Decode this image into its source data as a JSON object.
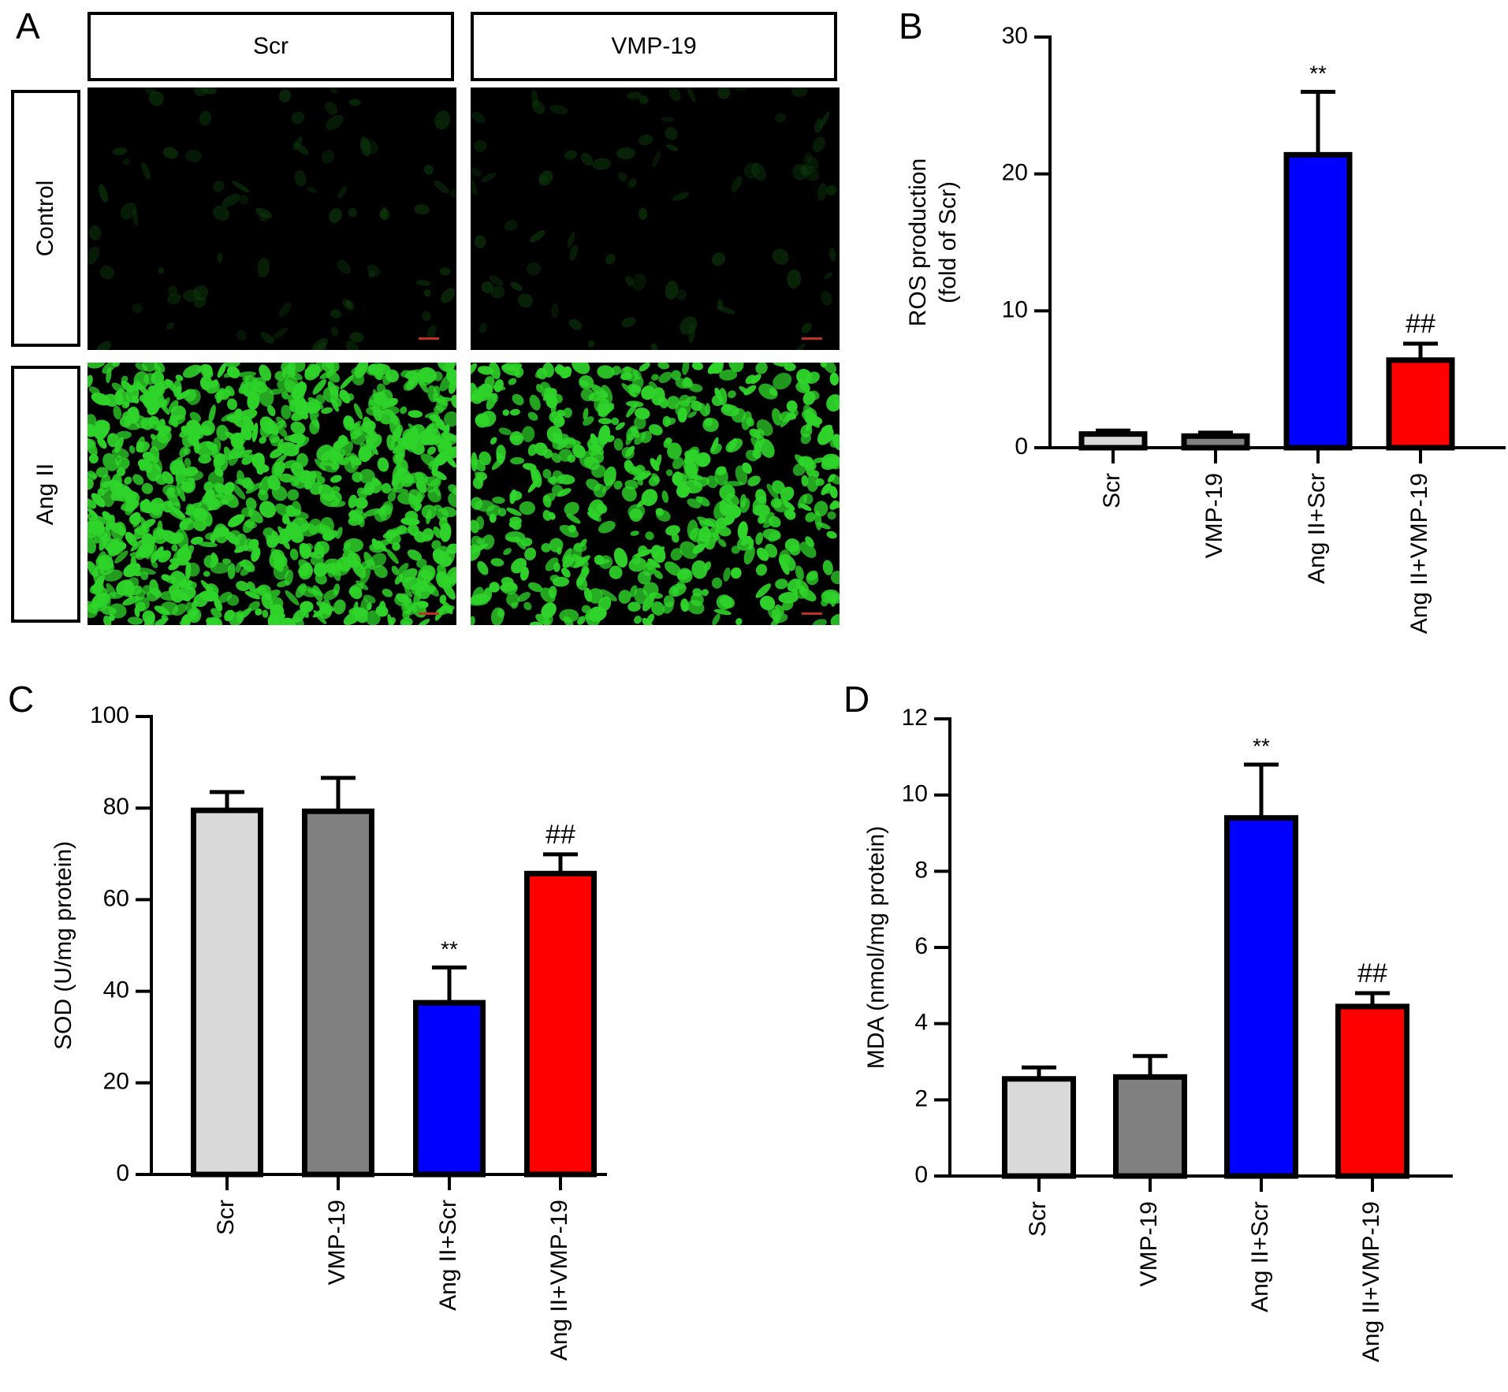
{
  "panel_a": {
    "letter": "A",
    "columns": [
      "Scr",
      "VMP-19"
    ],
    "rows": [
      "Control",
      "Ang II"
    ],
    "image_note_colors": {
      "background": "#000000",
      "cells": "#2fd42a"
    },
    "fluorescence_level": [
      [
        0.02,
        0.02
      ],
      [
        0.95,
        0.55
      ]
    ]
  },
  "chart_data": [
    {
      "panel": "B",
      "type": "bar",
      "categories": [
        "Scr",
        "VMP-19",
        "Ang II+Scr",
        "Ang II+VMP-19"
      ],
      "values": [
        1.0,
        0.85,
        21.4,
        6.4
      ],
      "errors": [
        0.25,
        0.25,
        4.6,
        1.2
      ],
      "annotations": [
        "",
        "",
        "**",
        "##"
      ],
      "ylabel_lines": [
        "ROS production",
        "(fold of Scr)"
      ],
      "yticks": [
        0,
        10,
        20,
        30
      ],
      "ylim": [
        0,
        30
      ],
      "colors": [
        "#d9d9d9",
        "#808080",
        "#0000ff",
        "#ff0000"
      ],
      "grid": false
    },
    {
      "panel": "C",
      "type": "bar",
      "categories": [
        "Scr",
        "VMP-19",
        "Ang II+Scr",
        "Ang II+VMP-19"
      ],
      "values": [
        79.5,
        79.3,
        37.5,
        65.7
      ],
      "errors": [
        4.0,
        7.3,
        7.7,
        4.2
      ],
      "annotations": [
        "",
        "",
        "**",
        "##"
      ],
      "ylabel_lines": [
        "SOD (U/mg protein)"
      ],
      "yticks": [
        0,
        20,
        40,
        60,
        80,
        100
      ],
      "ylim": [
        0,
        100
      ],
      "colors": [
        "#d9d9d9",
        "#808080",
        "#0000ff",
        "#ff0000"
      ],
      "grid": false
    },
    {
      "panel": "D",
      "type": "bar",
      "categories": [
        "Scr",
        "VMP-19",
        "Ang II+Scr",
        "Ang II+VMP-19"
      ],
      "values": [
        2.55,
        2.6,
        9.4,
        4.45
      ],
      "errors": [
        0.3,
        0.55,
        1.4,
        0.35
      ],
      "annotations": [
        "",
        "",
        "**",
        "##"
      ],
      "ylabel_lines": [
        "MDA (nmol/mg protein)"
      ],
      "yticks": [
        0,
        2,
        4,
        6,
        8,
        10,
        12
      ],
      "ylim": [
        0,
        12
      ],
      "colors": [
        "#d9d9d9",
        "#808080",
        "#0000ff",
        "#ff0000"
      ],
      "grid": false
    }
  ]
}
